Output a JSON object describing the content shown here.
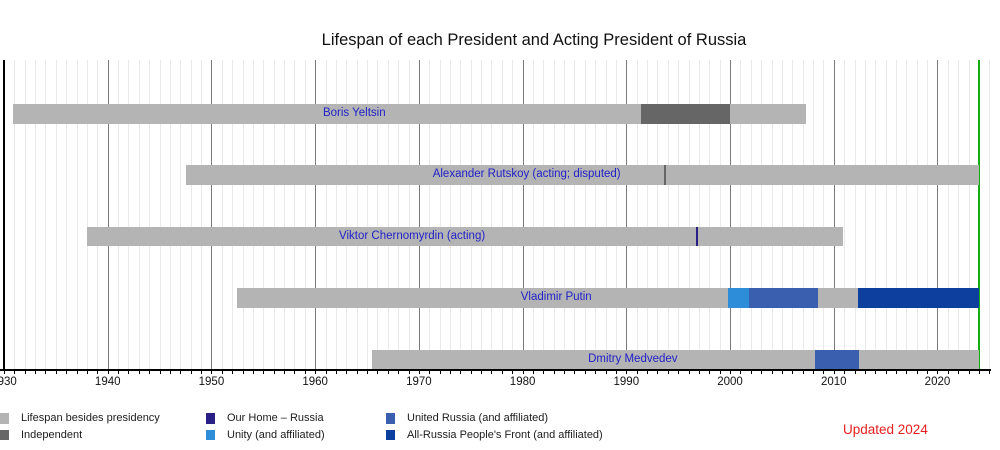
{
  "title": "Lifespan of each President and Acting President of Russia",
  "updated_note": "Updated 2024",
  "colors": {
    "lifespan": "#b4b4b4",
    "independent": "#666666",
    "our_home_russia": "#2a1f86",
    "unity": "#2d8dd8",
    "united_russia": "#3a5fae",
    "onf": "#0c3f9e",
    "present_line": "#12ad12",
    "label_blue": "#2121c8",
    "updated_red": "#e62020",
    "bar_gray": "#b4b4b4"
  },
  "chart_data": {
    "type": "timeline-bar",
    "title": "Lifespan of each President and Acting President of Russia",
    "x_axis": {
      "start_year": 1930,
      "end_year": 2025,
      "tick_every_years": 1,
      "decade_labels": [
        "1930",
        "1940",
        "1950",
        "1960",
        "1970",
        "1980",
        "1990",
        "2000",
        "2010",
        "2020"
      ],
      "present_year": 2024
    },
    "people": [
      {
        "name": "Boris Yeltsin",
        "segments": [
          {
            "from": 1930.9,
            "to": 1991.4,
            "party": "lifespan"
          },
          {
            "from": 1991.4,
            "to": 2000.0,
            "party": "independent"
          },
          {
            "from": 2000.0,
            "to": 2007.35,
            "party": "lifespan"
          }
        ],
        "ticks": []
      },
      {
        "name": "Alexander Rutskoy (acting; disputed)",
        "segments": [
          {
            "from": 1947.5,
            "to": 2024.0,
            "party": "lifespan"
          }
        ],
        "ticks": [
          {
            "year": 1993.75,
            "party": "independent"
          }
        ]
      },
      {
        "name": "Viktor Chernomyrdin (acting)",
        "segments": [
          {
            "from": 1938.0,
            "to": 2010.9,
            "party": "lifespan"
          }
        ],
        "ticks": [
          {
            "year": 1996.8,
            "party": "our_home_russia"
          }
        ]
      },
      {
        "name": "Vladimir Putin",
        "segments": [
          {
            "from": 1952.5,
            "to": 1999.85,
            "party": "lifespan"
          },
          {
            "from": 1999.85,
            "to": 2001.85,
            "party": "unity"
          },
          {
            "from": 2001.85,
            "to": 2008.45,
            "party": "united_russia"
          },
          {
            "from": 2008.45,
            "to": 2012.3,
            "party": "lifespan"
          },
          {
            "from": 2012.3,
            "to": 2024.0,
            "party": "onf"
          }
        ],
        "ticks": []
      },
      {
        "name": "Dmitry Medvedev",
        "segments": [
          {
            "from": 1965.45,
            "to": 2008.2,
            "party": "lifespan"
          },
          {
            "from": 2008.2,
            "to": 2012.4,
            "party": "united_russia"
          },
          {
            "from": 2012.4,
            "to": 2024.0,
            "party": "lifespan"
          }
        ],
        "ticks": []
      }
    ]
  },
  "legend": {
    "items": [
      {
        "label": "Lifespan besides presidency",
        "party": "lifespan",
        "col": 0,
        "row": 0
      },
      {
        "label": "Independent",
        "party": "independent",
        "col": 0,
        "row": 1
      },
      {
        "label": "Our Home – Russia",
        "party": "our_home_russia",
        "col": 1,
        "row": 0
      },
      {
        "label": "Unity (and affiliated)",
        "party": "unity",
        "col": 1,
        "row": 1
      },
      {
        "label": "United Russia (and affiliated)",
        "party": "united_russia",
        "col": 2,
        "row": 0
      },
      {
        "label": "All-Russia People's Front (and affiliated)",
        "party": "onf",
        "col": 2,
        "row": 1
      }
    ]
  }
}
